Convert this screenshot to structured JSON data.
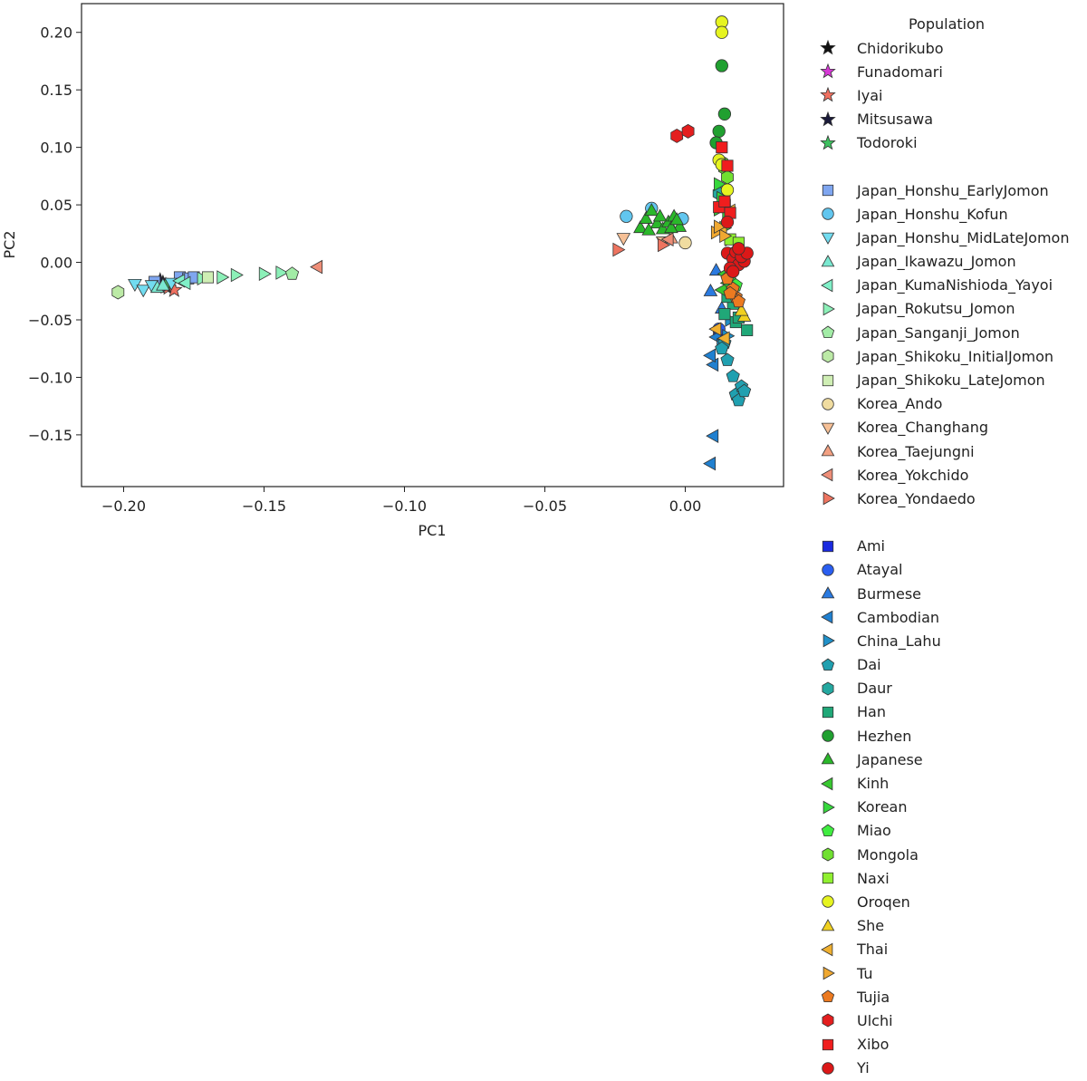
{
  "chart_data": {
    "type": "scatter",
    "title": "",
    "xlabel": "PC1",
    "ylabel": "PC2",
    "xlim": [
      -0.215,
      0.035
    ],
    "ylim": [
      -0.195,
      0.225
    ],
    "xticks": [
      -0.2,
      -0.15,
      -0.1,
      -0.05,
      0.0
    ],
    "xtick_labels": [
      "−0.20",
      "−0.15",
      "−0.10",
      "−0.05",
      "0.00"
    ],
    "yticks": [
      -0.15,
      -0.1,
      -0.05,
      0.0,
      0.05,
      0.1,
      0.15,
      0.2
    ],
    "ytick_labels": [
      "−0.15",
      "−0.10",
      "−0.05",
      "0.00",
      "0.05",
      "0.10",
      "0.15",
      "0.20"
    ],
    "grid": false,
    "legend_title": "Population",
    "legend_placement": "outside-right",
    "groups": [
      [
        {
          "name": "Chidorikubo",
          "marker": "star",
          "color": "#111111",
          "points": [
            [
              -0.186,
              -0.018
            ]
          ]
        },
        {
          "name": "Funadomari",
          "marker": "star",
          "color": "#d63ad6",
          "points": [
            [
              -0.185,
              -0.021
            ]
          ]
        },
        {
          "name": "Iyai",
          "marker": "star",
          "color": "#f07060",
          "points": [
            [
              -0.184,
              -0.022
            ],
            [
              -0.182,
              -0.024
            ]
          ]
        },
        {
          "name": "Mitsusawa",
          "marker": "star",
          "color": "#1a1a3a",
          "points": [
            [
              -0.187,
              -0.016
            ]
          ]
        },
        {
          "name": "Todoroki",
          "marker": "star",
          "color": "#3fc060",
          "points": [
            [
              -0.185,
              -0.02
            ]
          ]
        }
      ],
      [
        {
          "name": "Japan_Honshu_EarlyJomon",
          "marker": "square",
          "color": "#7fa6f0",
          "points": [
            [
              -0.189,
              -0.017
            ],
            [
              -0.18,
              -0.013
            ],
            [
              -0.177,
              -0.014
            ],
            [
              -0.175,
              -0.013
            ]
          ]
        },
        {
          "name": "Japan_Honshu_Kofun",
          "marker": "circle",
          "color": "#62c6ef",
          "points": [
            [
              -0.021,
              0.04
            ],
            [
              -0.012,
              0.047
            ],
            [
              -0.001,
              0.038
            ]
          ]
        },
        {
          "name": "Japan_Honshu_MidLateJomon",
          "marker": "tri_down",
          "color": "#72dcf0",
          "points": [
            [
              -0.196,
              -0.019
            ],
            [
              -0.193,
              -0.024
            ],
            [
              -0.19,
              -0.02
            ],
            [
              -0.183,
              -0.018
            ]
          ]
        },
        {
          "name": "Japan_Ikawazu_Jomon",
          "marker": "tri_up",
          "color": "#7ae8d0",
          "points": [
            [
              -0.188,
              -0.022
            ],
            [
              -0.186,
              -0.02
            ]
          ]
        },
        {
          "name": "Japan_KumaNishioda_Yayoi",
          "marker": "tri_left",
          "color": "#80f0c8",
          "points": [
            [
              -0.18,
              -0.016
            ],
            [
              -0.178,
              -0.018
            ]
          ]
        },
        {
          "name": "Japan_Rokutsu_Jomon",
          "marker": "tri_right",
          "color": "#8cf0b8",
          "points": [
            [
              -0.172,
              -0.014
            ],
            [
              -0.165,
              -0.013
            ],
            [
              -0.16,
              -0.011
            ],
            [
              -0.15,
              -0.01
            ],
            [
              -0.144,
              -0.009
            ]
          ]
        },
        {
          "name": "Japan_Sanganji_Jomon",
          "marker": "pentagon",
          "color": "#a2eca6",
          "points": [
            [
              -0.14,
              -0.01
            ]
          ]
        },
        {
          "name": "Japan_Shikoku_InitialJomon",
          "marker": "hexagon",
          "color": "#bceaa6",
          "points": [
            [
              -0.202,
              -0.026
            ]
          ]
        },
        {
          "name": "Japan_Shikoku_LateJomon",
          "marker": "square",
          "color": "#cfeeb4",
          "points": [
            [
              -0.17,
              -0.013
            ]
          ]
        },
        {
          "name": "Korea_Ando",
          "marker": "circle",
          "color": "#f0dca0",
          "points": [
            [
              0.0,
              0.017
            ]
          ]
        },
        {
          "name": "Korea_Changhang",
          "marker": "tri_down",
          "color": "#f6c096",
          "points": [
            [
              -0.022,
              0.021
            ],
            [
              -0.008,
              0.018
            ]
          ]
        },
        {
          "name": "Korea_Taejungni",
          "marker": "tri_up",
          "color": "#f2a082",
          "points": [
            [
              -0.005,
              0.021
            ]
          ]
        },
        {
          "name": "Korea_Yokchido",
          "marker": "tri_left",
          "color": "#ee8e78",
          "points": [
            [
              -0.131,
              -0.004
            ],
            [
              -0.006,
              0.02
            ]
          ]
        },
        {
          "name": "Korea_Yondaedo",
          "marker": "tri_right",
          "color": "#ee7460",
          "points": [
            [
              -0.024,
              0.011
            ],
            [
              -0.008,
              0.015
            ]
          ]
        }
      ],
      [
        {
          "name": "Ami",
          "marker": "square",
          "color": "#1a2ae0",
          "points": [
            [
              0.012,
              -0.061
            ]
          ]
        },
        {
          "name": "Atayal",
          "marker": "circle",
          "color": "#2a5ef0",
          "points": [
            [
              0.012,
              -0.058
            ]
          ]
        },
        {
          "name": "Burmese",
          "marker": "tri_up",
          "color": "#2a7ae0",
          "points": [
            [
              0.009,
              -0.025
            ],
            [
              0.011,
              -0.007
            ],
            [
              0.013,
              -0.04
            ]
          ]
        },
        {
          "name": "Cambodian",
          "marker": "tri_left",
          "color": "#2080d0",
          "points": [
            [
              0.009,
              -0.175
            ],
            [
              0.01,
              -0.151
            ],
            [
              0.01,
              -0.089
            ],
            [
              0.009,
              -0.081
            ],
            [
              0.011,
              -0.065
            ]
          ]
        },
        {
          "name": "China_Lahu",
          "marker": "tri_right",
          "color": "#2090c8",
          "points": [
            [
              0.013,
              -0.072
            ],
            [
              0.016,
              -0.05
            ],
            [
              0.015,
              -0.064
            ]
          ]
        },
        {
          "name": "Dai",
          "marker": "pentagon",
          "color": "#20a0b0",
          "points": [
            [
              0.018,
              -0.115
            ],
            [
              0.019,
              -0.12
            ],
            [
              0.02,
              -0.108
            ],
            [
              0.021,
              -0.112
            ],
            [
              0.017,
              -0.099
            ],
            [
              0.015,
              -0.085
            ],
            [
              0.014,
              -0.07
            ],
            [
              0.013,
              -0.075
            ]
          ]
        },
        {
          "name": "Daur",
          "marker": "hexagon",
          "color": "#24a8a0",
          "points": [
            [
              0.012,
              0.06
            ],
            [
              0.014,
              0.052
            ],
            [
              0.013,
              0.049
            ]
          ]
        },
        {
          "name": "Han",
          "marker": "square",
          "color": "#20a878",
          "points": [
            [
              0.022,
              -0.059
            ],
            [
              0.018,
              -0.052
            ],
            [
              0.017,
              -0.036
            ],
            [
              0.015,
              -0.03
            ],
            [
              0.014,
              -0.045
            ],
            [
              0.019,
              -0.048
            ]
          ]
        },
        {
          "name": "Hezhen",
          "marker": "circle",
          "color": "#20a030",
          "points": [
            [
              0.013,
              0.171
            ],
            [
              0.014,
              0.129
            ],
            [
              0.012,
              0.114
            ],
            [
              0.011,
              0.104
            ]
          ]
        },
        {
          "name": "Japanese",
          "marker": "tri_up",
          "color": "#2ab82a",
          "points": [
            [
              -0.016,
              0.03
            ],
            [
              -0.014,
              0.038
            ],
            [
              -0.012,
              0.045
            ],
            [
              -0.01,
              0.034
            ],
            [
              -0.008,
              0.029
            ],
            [
              -0.006,
              0.035
            ],
            [
              -0.004,
              0.04
            ],
            [
              -0.002,
              0.031
            ],
            [
              -0.013,
              0.028
            ],
            [
              -0.009,
              0.04
            ],
            [
              -0.005,
              0.03
            ],
            [
              -0.003,
              0.037
            ]
          ]
        },
        {
          "name": "Kinh",
          "marker": "tri_left",
          "color": "#38c830",
          "points": [
            [
              0.013,
              -0.024
            ],
            [
              0.015,
              -0.018
            ],
            [
              0.014,
              -0.01
            ]
          ]
        },
        {
          "name": "Korean",
          "marker": "tri_right",
          "color": "#36d83c",
          "points": [
            [
              0.012,
              0.068
            ],
            [
              0.013,
              0.056
            ],
            [
              0.015,
              0.04
            ],
            [
              0.014,
              0.03
            ],
            [
              0.016,
              0.02
            ],
            [
              0.012,
              0.046
            ]
          ]
        },
        {
          "name": "Miao",
          "marker": "pentagon",
          "color": "#40ec40",
          "points": [
            [
              0.016,
              -0.012
            ],
            [
              0.018,
              -0.02
            ]
          ]
        },
        {
          "name": "Mongola",
          "marker": "hexagon",
          "color": "#70e030",
          "points": [
            [
              0.013,
              0.087
            ],
            [
              0.014,
              0.082
            ],
            [
              0.015,
              0.074
            ]
          ]
        },
        {
          "name": "Naxi",
          "marker": "square",
          "color": "#90f030",
          "points": [
            [
              0.016,
              0.02
            ],
            [
              0.019,
              0.017
            ]
          ]
        },
        {
          "name": "Oroqen",
          "marker": "circle",
          "color": "#e6f420",
          "points": [
            [
              0.013,
              0.209
            ],
            [
              0.013,
              0.2
            ],
            [
              0.012,
              0.089
            ],
            [
              0.013,
              0.085
            ],
            [
              0.015,
              0.063
            ]
          ]
        },
        {
          "name": "She",
          "marker": "tri_up",
          "color": "#f0d020",
          "points": [
            [
              0.021,
              -0.047
            ],
            [
              0.02,
              -0.042
            ]
          ]
        },
        {
          "name": "Thai",
          "marker": "tri_left",
          "color": "#f0b030",
          "points": [
            [
              0.011,
              -0.058
            ],
            [
              0.014,
              -0.066
            ],
            [
              0.016,
              0.045
            ],
            [
              0.013,
              0.028
            ]
          ]
        },
        {
          "name": "Tu",
          "marker": "tri_right",
          "color": "#f0a830",
          "points": [
            [
              0.011,
              0.026
            ],
            [
              0.014,
              0.023
            ],
            [
              0.012,
              0.031
            ]
          ]
        },
        {
          "name": "Tujia",
          "marker": "pentagon",
          "color": "#ec7a20",
          "points": [
            [
              0.018,
              -0.03
            ],
            [
              0.017,
              -0.023
            ],
            [
              0.019,
              -0.034
            ],
            [
              0.016,
              -0.027
            ],
            [
              0.015,
              -0.014
            ]
          ]
        },
        {
          "name": "Ulchi",
          "marker": "hexagon",
          "color": "#e41e1e",
          "points": [
            [
              -0.003,
              0.11
            ],
            [
              0.001,
              0.114
            ]
          ]
        },
        {
          "name": "Xibo",
          "marker": "square",
          "color": "#f01e1e",
          "points": [
            [
              0.013,
              0.1
            ],
            [
              0.015,
              0.084
            ],
            [
              0.012,
              0.048
            ],
            [
              0.014,
              0.053
            ],
            [
              0.016,
              0.043
            ]
          ]
        },
        {
          "name": "Yi",
          "marker": "circle",
          "color": "#dc1818",
          "points": [
            [
              0.015,
              0.008
            ],
            [
              0.017,
              0.003
            ],
            [
              0.019,
              -0.002
            ],
            [
              0.021,
              0.001
            ],
            [
              0.018,
              0.009
            ],
            [
              0.016,
              -0.005
            ],
            [
              0.02,
              0.005
            ],
            [
              0.022,
              0.008
            ],
            [
              0.017,
              -0.008
            ],
            [
              0.015,
              0.035
            ],
            [
              0.019,
              0.012
            ]
          ]
        }
      ]
    ]
  }
}
